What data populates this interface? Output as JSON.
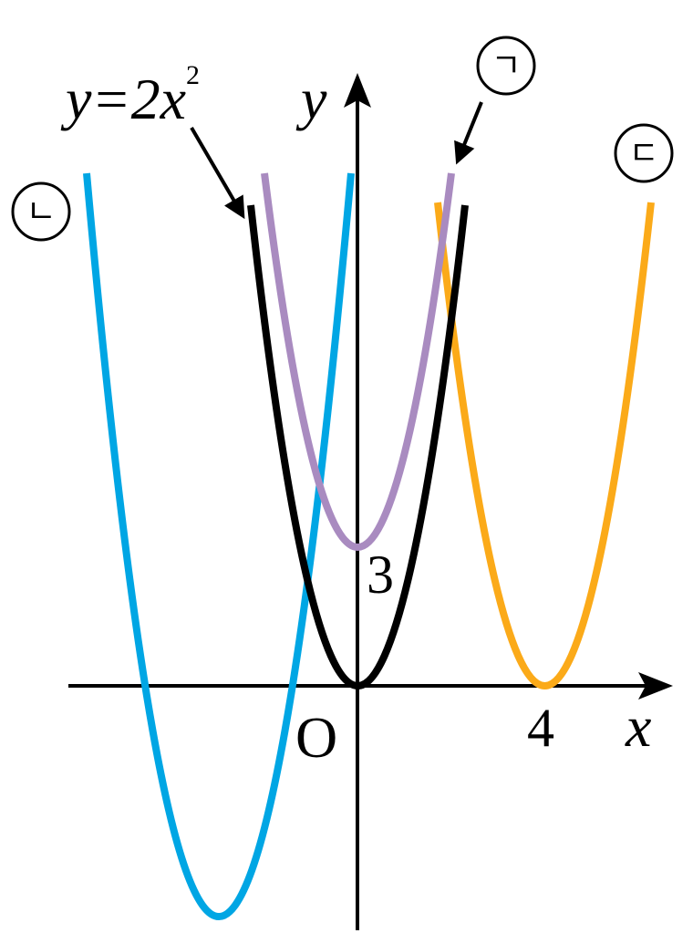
{
  "equation": {
    "base": "y=2x",
    "exponent": "2"
  },
  "axes": {
    "x": "x",
    "y": "y",
    "origin": "O"
  },
  "marks": {
    "y_intercept": "3",
    "x_vertex": "4"
  },
  "curve_labels": {
    "a": "ㄱ",
    "b": "ㄴ",
    "c": "ㄷ"
  }
}
